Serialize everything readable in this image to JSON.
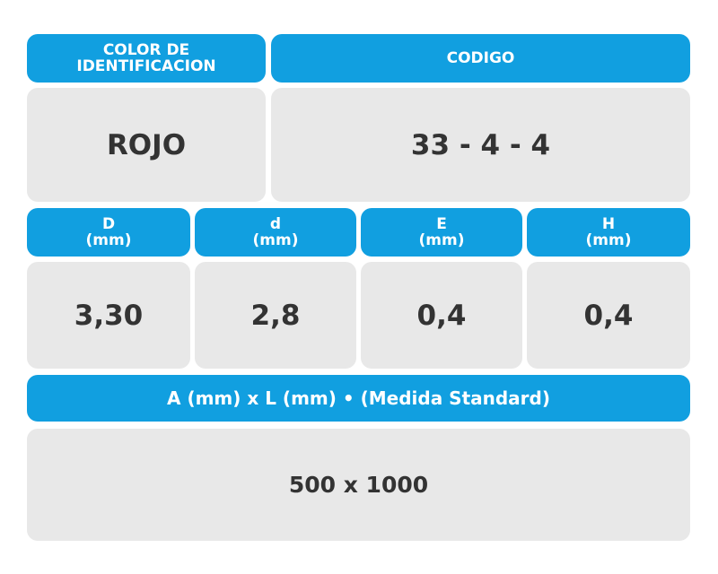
{
  "table1": {
    "headers": [
      [
        "COLOR DE",
        "IDENTIFICACION"
      ],
      [
        "CODIGO"
      ]
    ],
    "values": [
      "ROJO",
      "33 - 4 - 4"
    ]
  },
  "table2": {
    "headers": [
      [
        "D",
        "(mm)"
      ],
      [
        "d",
        "(mm)"
      ],
      [
        "E",
        "(mm)"
      ],
      [
        "H",
        "(mm)"
      ]
    ],
    "values": [
      "3,30",
      "2,8",
      "0,4",
      "0,4"
    ]
  },
  "table3": {
    "header": "A (mm) x L (mm) • (Medida Standard)",
    "value": "500 x 1000"
  }
}
